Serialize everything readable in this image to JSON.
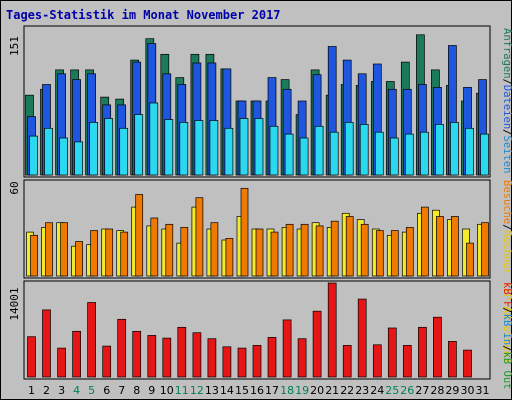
{
  "window": {
    "title": "Tages-Statistik im Monat November 2017"
  },
  "colors": {
    "background": "#c0c0c0",
    "plot_bg": "#c0c0c0",
    "hits": "#1b7a5a",
    "files": "#1e56e0",
    "pages": "#2ad8f0",
    "visits": "#f2ea2a",
    "sites": "#f07a00",
    "kbytes": "#e61616",
    "day_normal": "#000000",
    "day_weekend": "#00805a",
    "title": "#0000a8"
  },
  "chart_data": [
    {
      "type": "bar",
      "name": "top",
      "ymax_label": "151",
      "ylim": [
        0,
        151
      ],
      "categories": [
        "1",
        "2",
        "3",
        "4",
        "5",
        "6",
        "7",
        "8",
        "9",
        "10",
        "11",
        "12",
        "13",
        "14",
        "15",
        "16",
        "17",
        "18",
        "19",
        "20",
        "21",
        "22",
        "23",
        "24",
        "25",
        "26",
        "27",
        "28",
        "29",
        "30",
        "31"
      ],
      "series": [
        {
          "name": "Anfragen",
          "color_key": "hits",
          "values": [
            82,
            88,
            108,
            108,
            108,
            80,
            78,
            118,
            140,
            124,
            100,
            124,
            124,
            109,
            76,
            76,
            76,
            98,
            62,
            108,
            82,
            93,
            92,
            96,
            96,
            116,
            144,
            108,
            92,
            76,
            84
          ]
        },
        {
          "name": "Dateien",
          "color_key": "files",
          "values": [
            60,
            93,
            104,
            98,
            104,
            72,
            72,
            116,
            135,
            104,
            93,
            115,
            115,
            109,
            76,
            76,
            100,
            88,
            76,
            103,
            132,
            118,
            104,
            114,
            88,
            88,
            93,
            90,
            133,
            90,
            98
          ]
        },
        {
          "name": "Seiten",
          "color_key": "pages",
          "values": [
            40,
            48,
            38,
            34,
            54,
            58,
            48,
            62,
            74,
            57,
            54,
            56,
            56,
            48,
            58,
            58,
            50,
            42,
            38,
            50,
            44,
            54,
            52,
            44,
            38,
            42,
            44,
            52,
            54,
            48,
            42
          ]
        }
      ]
    },
    {
      "type": "bar",
      "name": "middle",
      "ymax_label": "60",
      "ylim": [
        0,
        60
      ],
      "series": [
        {
          "name": "Rechner",
          "color_key": "visits",
          "values": [
            28,
            31,
            34,
            19,
            20,
            30,
            29,
            44,
            32,
            30,
            21,
            44,
            30,
            23,
            38,
            30,
            30,
            31,
            30,
            34,
            31,
            40,
            36,
            30,
            26,
            28,
            40,
            42,
            36,
            30,
            33
          ]
        },
        {
          "name": "Besuche",
          "color_key": "sites",
          "values": [
            26,
            34,
            34,
            22,
            29,
            30,
            28,
            52,
            37,
            33,
            31,
            50,
            34,
            24,
            56,
            30,
            28,
            33,
            33,
            32,
            35,
            38,
            33,
            29,
            29,
            31,
            44,
            38,
            38,
            21,
            34
          ]
        }
      ]
    },
    {
      "type": "bar",
      "name": "bottom",
      "ymax_label": "14001",
      "ylim": [
        0,
        14001
      ],
      "series": [
        {
          "name": "kB F",
          "color_key": "kbytes",
          "values": [
            6000,
            10000,
            4300,
            6800,
            11100,
            4600,
            8600,
            6800,
            6200,
            5800,
            7400,
            6600,
            5700,
            4500,
            4300,
            4700,
            5900,
            8500,
            5700,
            9800,
            14000,
            4700,
            11600,
            4800,
            7300,
            4700,
            7400,
            8900,
            5300,
            4000,
            0
          ]
        }
      ]
    }
  ],
  "legend": {
    "top": [
      "Anfragen",
      "/",
      "Dateien",
      "/",
      "Seiten"
    ],
    "middle": [
      "Besuche",
      "/",
      "Rechner (IP-Adressen)"
    ],
    "bottom": [
      "kB F",
      "/",
      "kB In",
      "/",
      "kB Out"
    ]
  },
  "day_label_colors": {
    "weekend_days": [
      4,
      5,
      11,
      12,
      18,
      19,
      25,
      26
    ]
  }
}
